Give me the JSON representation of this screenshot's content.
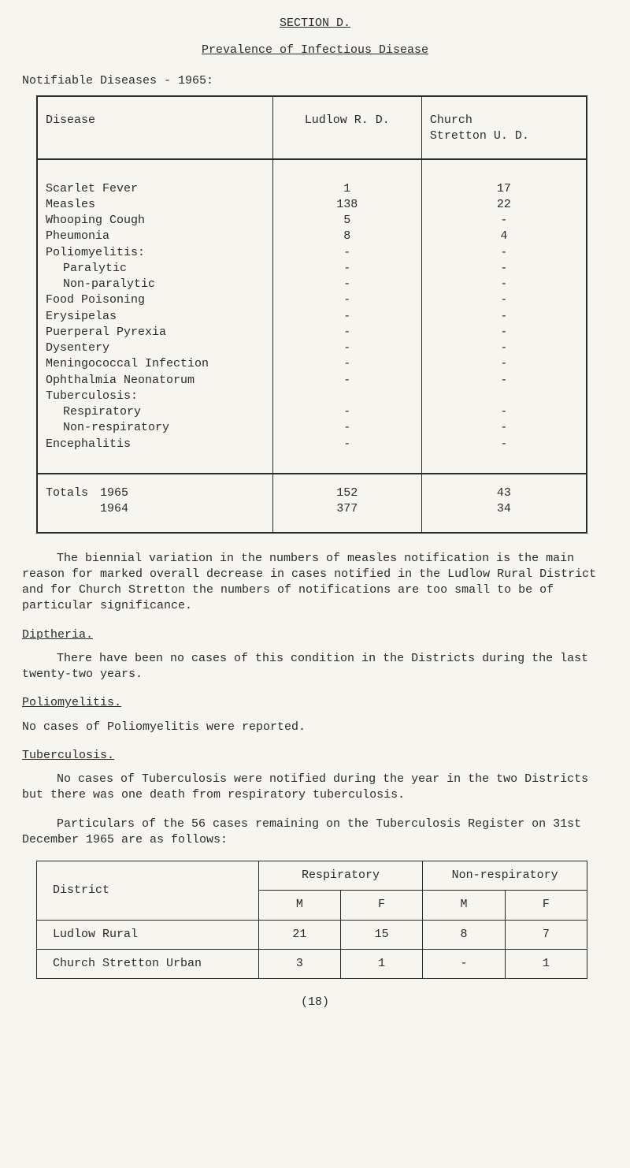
{
  "section_title": "SECTION D.",
  "subtitle": "Prevalence of Infectious Disease",
  "notifiable_heading": "Notifiable Diseases - 1965:",
  "table1": {
    "headers": {
      "disease": "Disease",
      "ludlow": "Ludlow R. D.",
      "church": "Church\nStretton U. D."
    },
    "rows": [
      {
        "label": "Scarlet Fever",
        "ludlow": "1",
        "church": "17",
        "indent": false
      },
      {
        "label": "Measles",
        "ludlow": "138",
        "church": "22",
        "indent": false
      },
      {
        "label": "Whooping Cough",
        "ludlow": "5",
        "church": "-",
        "indent": false
      },
      {
        "label": "Pheumonia",
        "ludlow": "8",
        "church": "4",
        "indent": false
      },
      {
        "label": "Poliomyelitis:",
        "ludlow": "-",
        "church": "-",
        "indent": false
      },
      {
        "label": "Paralytic",
        "ludlow": "-",
        "church": "-",
        "indent": true
      },
      {
        "label": "Non-paralytic",
        "ludlow": "-",
        "church": "-",
        "indent": true
      },
      {
        "label": "Food Poisoning",
        "ludlow": "-",
        "church": "-",
        "indent": false
      },
      {
        "label": "Erysipelas",
        "ludlow": "-",
        "church": "-",
        "indent": false
      },
      {
        "label": "Puerperal Pyrexia",
        "ludlow": "-",
        "church": "-",
        "indent": false
      },
      {
        "label": "Dysentery",
        "ludlow": "-",
        "church": "-",
        "indent": false
      },
      {
        "label": "Meningococcal Infection",
        "ludlow": "-",
        "church": "-",
        "indent": false
      },
      {
        "label": "Ophthalmia Neonatorum",
        "ludlow": "-",
        "church": "-",
        "indent": false
      },
      {
        "label": "Tuberculosis:",
        "ludlow": "",
        "church": "",
        "indent": false
      },
      {
        "label": "Respiratory",
        "ludlow": "-",
        "church": "-",
        "indent": true
      },
      {
        "label": "Non-respiratory",
        "ludlow": "-",
        "church": "-",
        "indent": true
      },
      {
        "label": "Encephalitis",
        "ludlow": "-",
        "church": "-",
        "indent": false
      }
    ],
    "totals_label": "Totals",
    "totals": [
      {
        "year": "1965",
        "ludlow": "152",
        "church": "43"
      },
      {
        "year": "1964",
        "ludlow": "377",
        "church": "34"
      }
    ]
  },
  "paragraphs": {
    "biennial": "The biennial variation in the numbers of measles notification is the main reason for marked overall decrease in cases notified in the Ludlow Rural District and for Church Stretton the numbers of notifications are too small to be of particular significance.",
    "diptheria_h": "Diptheria.",
    "diptheria_p": "There have been no cases of this condition in the Districts during the last twenty-two years.",
    "polio_h": "Poliomyelitis.",
    "polio_p": "No cases of Poliomyelitis were reported.",
    "tb_h": "Tuberculosis.",
    "tb_p1": "No cases of Tuberculosis were notified during the year in the two Districts but there was one death from respiratory tuberculosis.",
    "tb_p2": "Particulars of the 56 cases remaining on the Tuberculosis Register on 31st December 1965 are as follows:"
  },
  "table2": {
    "headers": {
      "district": "District",
      "resp": "Respiratory",
      "nonresp": "Non-respiratory",
      "m": "M",
      "f": "F"
    },
    "rows": [
      {
        "district": "Ludlow Rural",
        "rm": "21",
        "rf": "15",
        "nm": "8",
        "nf": "7"
      },
      {
        "district": "Church Stretton Urban",
        "rm": "3",
        "rf": "1",
        "nm": "-",
        "nf": "1"
      }
    ]
  },
  "page_number": "(18)",
  "colors": {
    "background": "#f7f5f0",
    "text": "#2a2a2a",
    "border": "#2a2a2a"
  }
}
